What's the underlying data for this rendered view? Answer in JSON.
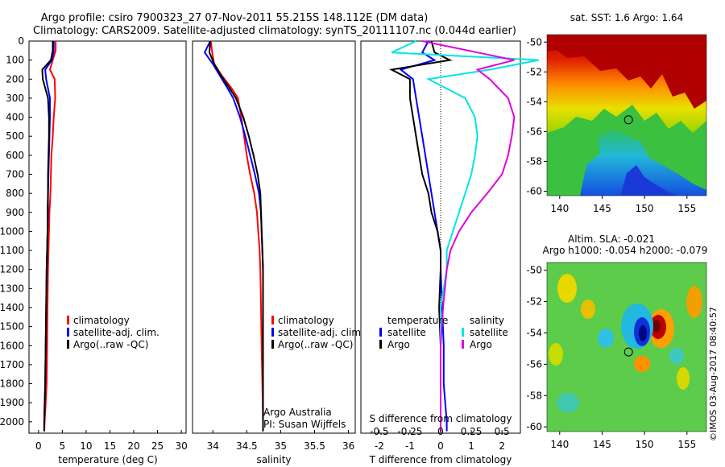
{
  "header": {
    "title": "Argo profile: csiro 7900323_27 07-Nov-2011 55.215S 148.112E (DM data)",
    "subtitle": "Climatology: CARS2009. Satellite-adjusted climatology: synTS_20111107.nc (0.044d earlier)"
  },
  "colors": {
    "climatology": "#ff0000",
    "satellite": "#0000ff",
    "argo": "#000000",
    "satellite_salinity": "#00e5e5",
    "argo_salinity": "#e000e0"
  },
  "depth_ticks": [
    "0",
    "100",
    "200",
    "300",
    "400",
    "500",
    "600",
    "700",
    "800",
    "900",
    "1000",
    "1100",
    "1200",
    "1300",
    "1400",
    "1500",
    "1600",
    "1700",
    "1800",
    "1900",
    "2000"
  ],
  "chart_data": [
    {
      "type": "line",
      "id": "temperature",
      "xlabel": "temperature (deg C)",
      "xlim": [
        -2,
        31
      ],
      "ylim": [
        2060,
        0
      ],
      "x_ticks": [
        "0",
        "5",
        "10",
        "15",
        "20",
        "25",
        "30"
      ],
      "legend": {
        "placement": "lower-center",
        "entries": [
          "climatology",
          "satellite-adj. clim.",
          "Argo(..raw -QC)"
        ]
      },
      "series": [
        {
          "name": "climatology",
          "color": "#ff0000",
          "x": [
            3.6,
            3.6,
            3.0,
            2.4,
            3.4,
            3.5,
            3.2,
            3.0,
            2.7,
            2.6,
            2.5,
            2.3,
            2.2,
            2.1,
            2.0,
            1.9,
            1.8,
            1.7,
            1.5,
            1.3,
            1.2
          ],
          "y": [
            0,
            50,
            100,
            150,
            200,
            300,
            400,
            500,
            600,
            700,
            800,
            900,
            1000,
            1100,
            1200,
            1400,
            1600,
            1800,
            1900,
            2000,
            2050
          ]
        },
        {
          "name": "satellite-adj. clim.",
          "color": "#0000ff",
          "x": [
            3.2,
            3.2,
            2.8,
            1.4,
            1.6,
            2.4,
            2.4,
            2.3,
            2.2,
            2.1,
            2.0,
            2.0,
            1.9,
            1.8,
            1.7,
            1.6,
            1.5,
            1.4,
            1.3,
            1.2,
            1.2
          ],
          "y": [
            0,
            50,
            100,
            150,
            200,
            300,
            400,
            500,
            600,
            700,
            800,
            900,
            1000,
            1100,
            1200,
            1400,
            1600,
            1800,
            1900,
            2000,
            2050
          ]
        },
        {
          "name": "Argo(..raw -QC)",
          "color": "#000000",
          "x": [
            3.0,
            3.0,
            2.6,
            0.8,
            0.9,
            2.0,
            2.2,
            2.2,
            2.1,
            2.0,
            2.0,
            1.9,
            1.9,
            1.8,
            1.7,
            1.6,
            1.5,
            1.4,
            1.3,
            1.2,
            1.2
          ],
          "y": [
            0,
            50,
            100,
            150,
            200,
            300,
            400,
            500,
            600,
            700,
            800,
            900,
            1000,
            1100,
            1200,
            1400,
            1600,
            1800,
            1900,
            2000,
            2050
          ]
        }
      ]
    },
    {
      "type": "line",
      "id": "salinity",
      "xlabel": "salinity",
      "xlim": [
        33.7,
        36.1
      ],
      "ylim": [
        2060,
        0
      ],
      "x_ticks": [
        "34",
        "34.5",
        "35",
        "35.5",
        "36"
      ],
      "legend": {
        "placement": "lower-center",
        "entries": [
          "climatology",
          "satellite-adj. clim.",
          "Argo(..raw -QC)"
        ]
      },
      "annotation": {
        "line1": "Argo Australia",
        "line2": "PI: Susan Wijffels"
      },
      "series": [
        {
          "name": "climatology",
          "color": "#ff0000",
          "x": [
            33.97,
            33.99,
            34.02,
            34.13,
            34.28,
            34.37,
            34.42,
            34.46,
            34.5,
            34.55,
            34.61,
            34.65,
            34.67,
            34.69,
            34.7,
            34.71,
            34.72,
            34.73,
            34.74,
            34.74
          ],
          "y": [
            0,
            60,
            120,
            180,
            250,
            300,
            400,
            500,
            600,
            700,
            800,
            900,
            1000,
            1100,
            1200,
            1400,
            1600,
            1800,
            2000,
            2050
          ]
        },
        {
          "name": "satellite-adj. clim.",
          "color": "#0000ff",
          "x": [
            33.96,
            33.88,
            34.0,
            34.1,
            34.22,
            34.3,
            34.4,
            34.48,
            34.55,
            34.62,
            34.68,
            34.71,
            34.72,
            34.73,
            34.74,
            34.74,
            34.74,
            34.74,
            34.74,
            34.74
          ],
          "y": [
            0,
            60,
            120,
            180,
            250,
            300,
            400,
            500,
            600,
            700,
            800,
            900,
            1000,
            1100,
            1200,
            1400,
            1600,
            1800,
            2000,
            2050
          ]
        },
        {
          "name": "Argo(..raw -QC)",
          "color": "#000000",
          "x": [
            33.96,
            33.95,
            34.02,
            34.12,
            34.25,
            34.34,
            34.45,
            34.53,
            34.6,
            34.66,
            34.7,
            34.71,
            34.72,
            34.73,
            34.74,
            34.74,
            34.74,
            34.74,
            34.74,
            34.74
          ],
          "y": [
            0,
            60,
            120,
            180,
            250,
            300,
            400,
            500,
            600,
            700,
            800,
            900,
            1000,
            1100,
            1200,
            1400,
            1600,
            1800,
            2000,
            2050
          ]
        }
      ]
    },
    {
      "type": "line",
      "id": "difference",
      "xlabel": "T difference from climatology",
      "x_ticks": [
        "-2",
        "-1",
        "0",
        "1",
        "2"
      ],
      "xlim": [
        -2.6,
        2.6
      ],
      "ylim": [
        2060,
        0
      ],
      "secondary_axis": {
        "label": "S difference from climatology",
        "ticks": [
          "-0.5",
          "-0.25",
          "0",
          "0.25",
          "0.5"
        ]
      },
      "legend": {
        "placement": "lower-center",
        "left_title": "temperature",
        "right_title": "salinity",
        "left_entries": [
          "satellite",
          "Argo"
        ],
        "right_entries": [
          "satellite",
          "Argo"
        ]
      },
      "series": [
        {
          "name": "satellite",
          "group": "temperature",
          "color": "#0000ff",
          "x": [
            -0.4,
            -0.6,
            -0.2,
            -1.3,
            -0.9,
            -0.8,
            -0.7,
            -0.6,
            -0.5,
            -0.4,
            -0.3,
            -0.2,
            -0.1,
            0.0,
            0.0,
            0.05,
            0.1,
            0.1,
            0.15,
            0.2,
            0.2
          ],
          "y": [
            0,
            60,
            100,
            150,
            200,
            300,
            400,
            500,
            600,
            700,
            800,
            900,
            1000,
            1100,
            1200,
            1400,
            1600,
            1800,
            1900,
            2000,
            2050
          ]
        },
        {
          "name": "Argo",
          "group": "temperature",
          "color": "#000000",
          "x": [
            -0.3,
            -0.2,
            0.3,
            -1.6,
            -1.0,
            -1.0,
            -0.9,
            -0.8,
            -0.7,
            -0.6,
            -0.4,
            -0.3,
            -0.1,
            0.0,
            0.0,
            -0.05,
            0.0,
            0.0,
            0.0,
            0.0,
            0.0
          ],
          "y": [
            0,
            60,
            100,
            150,
            200,
            300,
            400,
            500,
            600,
            700,
            800,
            900,
            1000,
            1100,
            1200,
            1400,
            1600,
            1800,
            1900,
            2000,
            2050
          ]
        },
        {
          "name": "satellite",
          "group": "salinity",
          "color": "#00e5e5",
          "x": [
            -0.2,
            -0.4,
            0.8,
            0.4,
            -0.1,
            0.2,
            0.28,
            0.3,
            0.28,
            0.25,
            0.2,
            0.15,
            0.1,
            0.05,
            0.05,
            0.0,
            0.0,
            0.0,
            0.0,
            0.0,
            0.0
          ],
          "y": [
            0,
            60,
            100,
            150,
            200,
            300,
            400,
            500,
            600,
            700,
            800,
            900,
            1000,
            1100,
            1200,
            1400,
            1600,
            1800,
            1900,
            2000,
            2050
          ]
        },
        {
          "name": "Argo",
          "group": "salinity",
          "color": "#e000e0",
          "x": [
            -0.15,
            0.3,
            0.6,
            0.3,
            0.4,
            0.55,
            0.6,
            0.58,
            0.55,
            0.5,
            0.38,
            0.25,
            0.15,
            0.08,
            0.05,
            0.02,
            0.0,
            0.0,
            0.0,
            0.0,
            0.0
          ],
          "y": [
            0,
            60,
            100,
            150,
            200,
            300,
            400,
            500,
            600,
            700,
            800,
            900,
            1000,
            1100,
            1200,
            1400,
            1600,
            1800,
            1900,
            2000,
            2050
          ]
        }
      ]
    },
    {
      "type": "heatmap",
      "id": "sst-map",
      "title": "sat. SST: 1.6 Argo: 1.64",
      "x_ticks": [
        "140",
        "145",
        "150",
        "155"
      ],
      "y_ticks": [
        "-50",
        "-52",
        "-54",
        "-56",
        "-58",
        "-60"
      ],
      "xlim": [
        138.5,
        157.3
      ],
      "ylim": [
        -60.3,
        -49.5
      ],
      "marker": {
        "lon": 148.112,
        "lat": -55.215
      }
    },
    {
      "type": "heatmap",
      "id": "sla-map",
      "title": "Altim. SLA: -0.021",
      "subtitle": "Argo h1000: -0.054 h2000: -0.079",
      "x_ticks": [
        "140",
        "145",
        "150",
        "155"
      ],
      "y_ticks": [
        "-50",
        "-52",
        "-54",
        "-56",
        "-58",
        "-60"
      ],
      "xlim": [
        138.5,
        157.3
      ],
      "ylim": [
        -60.3,
        -49.5
      ],
      "marker": {
        "lon": 148.112,
        "lat": -55.215
      }
    }
  ],
  "footer": {
    "stamp": "©IMOS 03-Aug-2017 08:40:57"
  }
}
